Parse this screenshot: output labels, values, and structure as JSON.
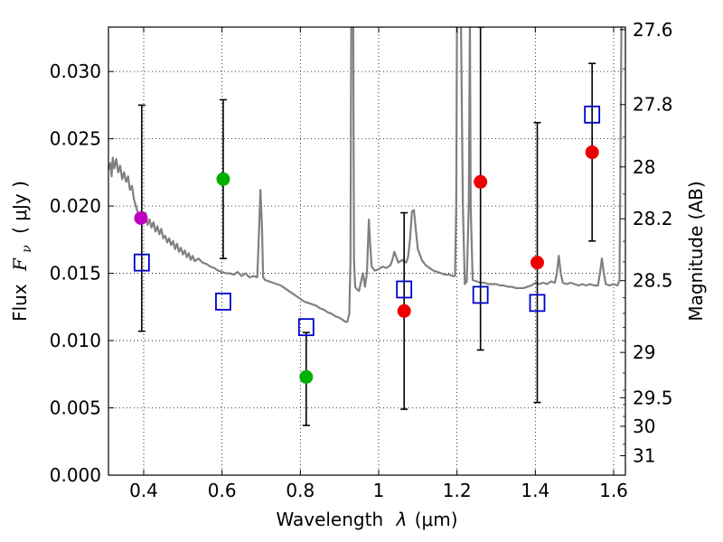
{
  "chart_data": {
    "type": "scatter",
    "title": "",
    "xlabel_prefix": "Wavelength",
    "xlabel_symbol": "λ",
    "xlabel_unit": "(μm)",
    "ylabel_prefix": "Flux",
    "ylabel_symbol": "F",
    "ylabel_symbol_sub": "ν",
    "ylabel_unit": "( μJy )",
    "y2label": "Magnitude (AB)",
    "xlim": [
      0.31,
      1.63
    ],
    "ylim": [
      0.0,
      0.0333
    ],
    "grid": true,
    "x_ticks": [
      0.4,
      0.6,
      0.8,
      1.0,
      1.2,
      1.4,
      1.6
    ],
    "x_tick_labels": [
      "0.4",
      "0.6",
      "0.8",
      "1",
      "1.2",
      "1.4",
      "1.6"
    ],
    "y_ticks": [
      0.0,
      0.005,
      0.01,
      0.015,
      0.02,
      0.025,
      0.03
    ],
    "y_tick_labels": [
      "0.000",
      "0.005",
      "0.010",
      "0.015",
      "0.020",
      "0.025",
      "0.030"
    ],
    "y2_ticks": [
      {
        "mag": 27.6,
        "label": "27.6"
      },
      {
        "mag": 27.8,
        "label": "27.8"
      },
      {
        "mag": 28.0,
        "label": "28"
      },
      {
        "mag": 28.2,
        "label": "28.2"
      },
      {
        "mag": 28.5,
        "label": "28.5"
      },
      {
        "mag": 29.0,
        "label": "29"
      },
      {
        "mag": 29.5,
        "label": "29.5"
      },
      {
        "mag": 30.0,
        "label": "30"
      },
      {
        "mag": 31.0,
        "label": "31"
      }
    ],
    "colors": {
      "model": "#808080",
      "errorbar": "#000000",
      "square": "#0000cc",
      "magenta": "#c000c0",
      "green": "#00b000",
      "red": "#ee0000"
    },
    "errorbars": [
      {
        "x": 0.395,
        "low": 0.0107,
        "high": 0.0275
      },
      {
        "x": 0.603,
        "low": 0.0161,
        "high": 0.0279
      },
      {
        "x": 0.815,
        "low": 0.0037,
        "high": 0.0106
      },
      {
        "x": 1.065,
        "low": 0.0049,
        "high": 0.0195
      },
      {
        "x": 1.26,
        "low": 0.0093,
        "high": 0.0333
      },
      {
        "x": 1.405,
        "low": 0.0054,
        "high": 0.0262
      },
      {
        "x": 1.545,
        "low": 0.0174,
        "high": 0.0306
      }
    ],
    "model_squares": [
      {
        "x": 0.395,
        "y": 0.0158
      },
      {
        "x": 0.603,
        "y": 0.0129
      },
      {
        "x": 0.815,
        "y": 0.011
      },
      {
        "x": 1.065,
        "y": 0.0138
      },
      {
        "x": 1.26,
        "y": 0.0134
      },
      {
        "x": 1.405,
        "y": 0.0128
      },
      {
        "x": 1.545,
        "y": 0.0268
      }
    ],
    "observed_points": [
      {
        "x": 0.393,
        "y": 0.0191,
        "color": "magenta"
      },
      {
        "x": 0.603,
        "y": 0.022,
        "color": "green"
      },
      {
        "x": 0.815,
        "y": 0.0073,
        "color": "green"
      },
      {
        "x": 1.065,
        "y": 0.0122,
        "color": "red"
      },
      {
        "x": 1.26,
        "y": 0.0218,
        "color": "red"
      },
      {
        "x": 1.405,
        "y": 0.0158,
        "color": "red"
      },
      {
        "x": 1.545,
        "y": 0.024,
        "color": "red"
      }
    ],
    "model_spectrum": [
      [
        0.31,
        0.0227
      ],
      [
        0.315,
        0.0232
      ],
      [
        0.318,
        0.0222
      ],
      [
        0.321,
        0.0236
      ],
      [
        0.325,
        0.0228
      ],
      [
        0.33,
        0.0235
      ],
      [
        0.335,
        0.0225
      ],
      [
        0.34,
        0.023
      ],
      [
        0.345,
        0.022
      ],
      [
        0.35,
        0.0225
      ],
      [
        0.355,
        0.0218
      ],
      [
        0.36,
        0.0222
      ],
      [
        0.365,
        0.0212
      ],
      [
        0.37,
        0.0215
      ],
      [
        0.375,
        0.0205
      ],
      [
        0.38,
        0.02
      ],
      [
        0.385,
        0.0195
      ],
      [
        0.39,
        0.019
      ],
      [
        0.395,
        0.0192
      ],
      [
        0.4,
        0.0188
      ],
      [
        0.405,
        0.0195
      ],
      [
        0.41,
        0.0186
      ],
      [
        0.415,
        0.019
      ],
      [
        0.42,
        0.0184
      ],
      [
        0.425,
        0.0188
      ],
      [
        0.43,
        0.0181
      ],
      [
        0.435,
        0.0185
      ],
      [
        0.44,
        0.0179
      ],
      [
        0.445,
        0.0183
      ],
      [
        0.45,
        0.0176
      ],
      [
        0.455,
        0.0178
      ],
      [
        0.46,
        0.0173
      ],
      [
        0.465,
        0.0176
      ],
      [
        0.47,
        0.0171
      ],
      [
        0.475,
        0.0174
      ],
      [
        0.48,
        0.0168
      ],
      [
        0.485,
        0.0172
      ],
      [
        0.49,
        0.0166
      ],
      [
        0.495,
        0.0169
      ],
      [
        0.5,
        0.0164
      ],
      [
        0.505,
        0.0167
      ],
      [
        0.51,
        0.0162
      ],
      [
        0.515,
        0.0165
      ],
      [
        0.52,
        0.016
      ],
      [
        0.525,
        0.0163
      ],
      [
        0.53,
        0.0159
      ],
      [
        0.54,
        0.0161
      ],
      [
        0.55,
        0.0158
      ],
      [
        0.56,
        0.0157
      ],
      [
        0.57,
        0.0155
      ],
      [
        0.58,
        0.0154
      ],
      [
        0.59,
        0.0152
      ],
      [
        0.6,
        0.0151
      ],
      [
        0.61,
        0.015
      ],
      [
        0.62,
        0.015
      ],
      [
        0.63,
        0.0149
      ],
      [
        0.64,
        0.0151
      ],
      [
        0.65,
        0.0148
      ],
      [
        0.66,
        0.015
      ],
      [
        0.67,
        0.0147
      ],
      [
        0.68,
        0.0148
      ],
      [
        0.69,
        0.0147
      ],
      [
        0.695,
        0.0185
      ],
      [
        0.698,
        0.0212
      ],
      [
        0.702,
        0.0185
      ],
      [
        0.705,
        0.0147
      ],
      [
        0.71,
        0.0145
      ],
      [
        0.72,
        0.0144
      ],
      [
        0.73,
        0.0143
      ],
      [
        0.74,
        0.0142
      ],
      [
        0.75,
        0.0141
      ],
      [
        0.76,
        0.0139
      ],
      [
        0.77,
        0.0137
      ],
      [
        0.78,
        0.0135
      ],
      [
        0.79,
        0.0133
      ],
      [
        0.8,
        0.0131
      ],
      [
        0.81,
        0.0129
      ],
      [
        0.82,
        0.0128
      ],
      [
        0.83,
        0.0127
      ],
      [
        0.84,
        0.0126
      ],
      [
        0.85,
        0.0124
      ],
      [
        0.86,
        0.0123
      ],
      [
        0.87,
        0.0121
      ],
      [
        0.88,
        0.012
      ],
      [
        0.89,
        0.0118
      ],
      [
        0.9,
        0.0117
      ],
      [
        0.91,
        0.0115
      ],
      [
        0.915,
        0.0114
      ],
      [
        0.92,
        0.0114
      ],
      [
        0.925,
        0.012
      ],
      [
        0.928,
        0.016
      ],
      [
        0.93,
        0.034
      ],
      [
        0.935,
        0.034
      ],
      [
        0.937,
        0.016
      ],
      [
        0.94,
        0.014
      ],
      [
        0.945,
        0.0138
      ],
      [
        0.95,
        0.0137
      ],
      [
        0.955,
        0.0144
      ],
      [
        0.96,
        0.015
      ],
      [
        0.965,
        0.014
      ],
      [
        0.97,
        0.015
      ],
      [
        0.975,
        0.019
      ],
      [
        0.978,
        0.0173
      ],
      [
        0.982,
        0.0155
      ],
      [
        0.99,
        0.0152
      ],
      [
        1.0,
        0.0153
      ],
      [
        1.01,
        0.0155
      ],
      [
        1.02,
        0.0154
      ],
      [
        1.03,
        0.0156
      ],
      [
        1.035,
        0.016
      ],
      [
        1.04,
        0.0166
      ],
      [
        1.045,
        0.0162
      ],
      [
        1.05,
        0.0158
      ],
      [
        1.06,
        0.016
      ],
      [
        1.07,
        0.0158
      ],
      [
        1.075,
        0.0162
      ],
      [
        1.08,
        0.0175
      ],
      [
        1.085,
        0.0196
      ],
      [
        1.09,
        0.0197
      ],
      [
        1.095,
        0.0182
      ],
      [
        1.1,
        0.0168
      ],
      [
        1.11,
        0.016
      ],
      [
        1.12,
        0.0156
      ],
      [
        1.13,
        0.0154
      ],
      [
        1.14,
        0.0152
      ],
      [
        1.15,
        0.0151
      ],
      [
        1.16,
        0.015
      ],
      [
        1.17,
        0.0149
      ],
      [
        1.18,
        0.0149
      ],
      [
        1.19,
        0.0148
      ],
      [
        1.195,
        0.0148
      ],
      [
        1.198,
        0.02
      ],
      [
        1.2,
        0.034
      ],
      [
        1.21,
        0.034
      ],
      [
        1.215,
        0.02
      ],
      [
        1.22,
        0.0142
      ],
      [
        1.225,
        0.0144
      ],
      [
        1.23,
        0.02
      ],
      [
        1.233,
        0.034
      ],
      [
        1.235,
        0.02
      ],
      [
        1.24,
        0.0145
      ],
      [
        1.25,
        0.0144
      ],
      [
        1.26,
        0.0143
      ],
      [
        1.27,
        0.0143
      ],
      [
        1.28,
        0.0142
      ],
      [
        1.29,
        0.0142
      ],
      [
        1.3,
        0.0142
      ],
      [
        1.31,
        0.0141
      ],
      [
        1.32,
        0.0141
      ],
      [
        1.33,
        0.014
      ],
      [
        1.34,
        0.014
      ],
      [
        1.35,
        0.0139
      ],
      [
        1.36,
        0.0139
      ],
      [
        1.37,
        0.0139
      ],
      [
        1.38,
        0.014
      ],
      [
        1.39,
        0.0141
      ],
      [
        1.4,
        0.0143
      ],
      [
        1.41,
        0.0142
      ],
      [
        1.42,
        0.0143
      ],
      [
        1.43,
        0.0142
      ],
      [
        1.44,
        0.0144
      ],
      [
        1.45,
        0.0143
      ],
      [
        1.455,
        0.015
      ],
      [
        1.46,
        0.0163
      ],
      [
        1.465,
        0.015
      ],
      [
        1.47,
        0.0143
      ],
      [
        1.48,
        0.0142
      ],
      [
        1.49,
        0.0143
      ],
      [
        1.5,
        0.0142
      ],
      [
        1.51,
        0.0141
      ],
      [
        1.52,
        0.0142
      ],
      [
        1.53,
        0.0141
      ],
      [
        1.54,
        0.0142
      ],
      [
        1.55,
        0.0141
      ],
      [
        1.56,
        0.0141
      ],
      [
        1.565,
        0.015
      ],
      [
        1.57,
        0.0161
      ],
      [
        1.575,
        0.015
      ],
      [
        1.58,
        0.0142
      ],
      [
        1.59,
        0.0141
      ],
      [
        1.6,
        0.0142
      ],
      [
        1.61,
        0.0141
      ],
      [
        1.615,
        0.0145
      ],
      [
        1.62,
        0.034
      ]
    ]
  }
}
